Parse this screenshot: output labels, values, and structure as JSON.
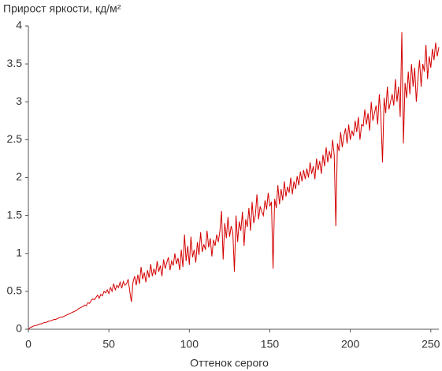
{
  "chart_data": {
    "type": "line",
    "title": "Прирост яркости, кд/м²",
    "xlabel": "Оттенок серого",
    "color": "#d40000",
    "xlim": [
      0,
      255
    ],
    "ylim": [
      0,
      4
    ],
    "xticks": [
      0,
      50,
      100,
      150,
      200,
      250
    ],
    "yticks": [
      0,
      0.5,
      1,
      1.5,
      2,
      2.5,
      3,
      3.5,
      4
    ],
    "x": [
      0,
      1,
      2,
      3,
      4,
      5,
      6,
      7,
      8,
      9,
      10,
      11,
      12,
      13,
      14,
      15,
      16,
      17,
      18,
      19,
      20,
      21,
      22,
      23,
      24,
      25,
      26,
      27,
      28,
      29,
      30,
      31,
      32,
      33,
      34,
      35,
      36,
      37,
      38,
      39,
      40,
      41,
      42,
      43,
      44,
      45,
      46,
      47,
      48,
      49,
      50,
      51,
      52,
      53,
      54,
      55,
      56,
      57,
      58,
      59,
      60,
      61,
      62,
      63,
      64,
      65,
      66,
      67,
      68,
      69,
      70,
      71,
      72,
      73,
      74,
      75,
      76,
      77,
      78,
      79,
      80,
      81,
      82,
      83,
      84,
      85,
      86,
      87,
      88,
      89,
      90,
      91,
      92,
      93,
      94,
      95,
      96,
      97,
      98,
      99,
      100,
      101,
      102,
      103,
      104,
      105,
      106,
      107,
      108,
      109,
      110,
      111,
      112,
      113,
      114,
      115,
      116,
      117,
      118,
      119,
      120,
      121,
      122,
      123,
      124,
      125,
      126,
      127,
      128,
      129,
      130,
      131,
      132,
      133,
      134,
      135,
      136,
      137,
      138,
      139,
      140,
      141,
      142,
      143,
      144,
      145,
      146,
      147,
      148,
      149,
      150,
      151,
      152,
      153,
      154,
      155,
      156,
      157,
      158,
      159,
      160,
      161,
      162,
      163,
      164,
      165,
      166,
      167,
      168,
      169,
      170,
      171,
      172,
      173,
      174,
      175,
      176,
      177,
      178,
      179,
      180,
      181,
      182,
      183,
      184,
      185,
      186,
      187,
      188,
      189,
      190,
      191,
      192,
      193,
      194,
      195,
      196,
      197,
      198,
      199,
      200,
      201,
      202,
      203,
      204,
      205,
      206,
      207,
      208,
      209,
      210,
      211,
      212,
      213,
      214,
      215,
      216,
      217,
      218,
      219,
      220,
      221,
      222,
      223,
      224,
      225,
      226,
      227,
      228,
      229,
      230,
      231,
      232,
      233,
      234,
      235,
      236,
      237,
      238,
      239,
      240,
      241,
      242,
      243,
      244,
      245,
      246,
      247,
      248,
      249,
      250,
      251,
      252,
      253,
      254,
      255
    ],
    "values": [
      0,
      0.02,
      0.03,
      0.04,
      0.05,
      0.05,
      0.06,
      0.07,
      0.07,
      0.08,
      0.09,
      0.09,
      0.1,
      0.11,
      0.11,
      0.12,
      0.13,
      0.13,
      0.14,
      0.15,
      0.16,
      0.16,
      0.17,
      0.18,
      0.19,
      0.2,
      0.21,
      0.22,
      0.23,
      0.24,
      0.25,
      0.27,
      0.28,
      0.29,
      0.3,
      0.32,
      0.31,
      0.35,
      0.34,
      0.38,
      0.4,
      0.39,
      0.42,
      0.45,
      0.41,
      0.46,
      0.44,
      0.5,
      0.48,
      0.52,
      0.47,
      0.55,
      0.5,
      0.6,
      0.52,
      0.58,
      0.55,
      0.62,
      0.54,
      0.63,
      0.58,
      0.6,
      0.66,
      0.5,
      0.36,
      0.62,
      0.7,
      0.58,
      0.72,
      0.6,
      0.82,
      0.66,
      0.75,
      0.62,
      0.78,
      0.68,
      0.86,
      0.7,
      0.8,
      0.72,
      0.9,
      0.76,
      0.84,
      0.7,
      0.92,
      0.8,
      0.88,
      0.95,
      0.78,
      0.9,
      0.84,
      1.0,
      0.86,
      0.94,
      0.78,
      1.05,
      0.82,
      1.25,
      0.9,
      1.1,
      0.85,
      1.22,
      0.95,
      1.05,
      0.88,
      1.15,
      0.98,
      1.28,
      1.02,
      1.12,
      1.05,
      1.3,
      1.08,
      1.2,
      0.96,
      1.18,
      1.1,
      1.25,
      1.15,
      1.3,
      1.56,
      0.92,
      1.4,
      1.2,
      1.48,
      1.22,
      1.36,
      1.28,
      0.76,
      1.5,
      1.15,
      1.42,
      1.3,
      1.55,
      1.1,
      1.45,
      1.35,
      1.6,
      1.3,
      1.68,
      1.4,
      1.5,
      1.78,
      1.45,
      1.62,
      1.55,
      1.5,
      1.7,
      1.58,
      1.8,
      1.62,
      1.68,
      0.8,
      1.72,
      1.6,
      1.9,
      1.65,
      1.85,
      1.7,
      1.95,
      1.75,
      1.88,
      1.8,
      2.0,
      1.78,
      1.95,
      1.85,
      2.02,
      1.9,
      2.08,
      1.95,
      2.1,
      1.98,
      2.12,
      2.0,
      2.2,
      2.05,
      2.15,
      1.98,
      2.25,
      2.1,
      2.22,
      2.05,
      2.3,
      2.15,
      2.4,
      2.2,
      2.35,
      2.25,
      2.5,
      2.3,
      1.36,
      2.45,
      2.35,
      2.6,
      2.4,
      2.55,
      2.65,
      2.45,
      2.7,
      2.5,
      2.62,
      2.55,
      2.75,
      2.6,
      2.8,
      2.5,
      2.7,
      2.68,
      2.9,
      2.7,
      2.85,
      2.62,
      3.0,
      2.75,
      2.85,
      2.95,
      2.7,
      3.1,
      2.8,
      2.2,
      3.05,
      2.85,
      3.2,
      2.9,
      3.0,
      3.1,
      2.95,
      3.3,
      3.0,
      3.2,
      2.8,
      3.92,
      2.45,
      3.25,
      3.05,
      3.4,
      3.1,
      3.5,
      3.2,
      3.45,
      3.0,
      3.3,
      3.55,
      3.2,
      3.5,
      3.4,
      3.75,
      3.3,
      3.6,
      3.45,
      3.7,
      3.55,
      3.78,
      3.6,
      3.72
    ]
  }
}
